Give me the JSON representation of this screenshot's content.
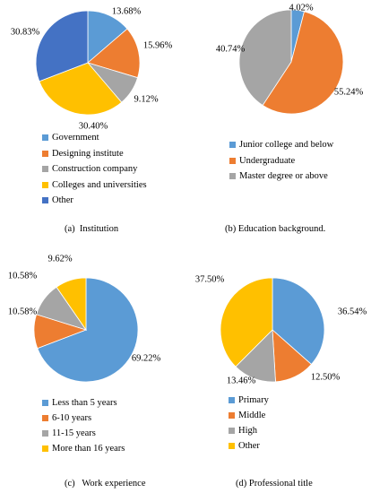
{
  "chart_data": [
    {
      "type": "pie",
      "caption": "(a)  Institution",
      "slices": [
        {
          "label": "Government",
          "value": 13.68,
          "value_label": "13.68%",
          "color": "#5B9BD5"
        },
        {
          "label": "Designing institute",
          "value": 15.96,
          "value_label": "15.96%",
          "color": "#ED7D31"
        },
        {
          "label": "Construction company",
          "value": 9.12,
          "value_label": "9.12%",
          "color": "#A5A5A5"
        },
        {
          "label": "Colleges and universities",
          "value": 30.4,
          "value_label": "30.40%",
          "color": "#FFC000"
        },
        {
          "label": "Other",
          "value": 30.83,
          "value_label": "30.83%",
          "color": "#4472C4"
        }
      ],
      "legend_position": "bottom"
    },
    {
      "type": "pie",
      "caption": "(b) Education background.",
      "slices": [
        {
          "label": "Junior college and below",
          "value": 4.02,
          "value_label": "4.02%",
          "color": "#5B9BD5"
        },
        {
          "label": "Undergraduate",
          "value": 55.24,
          "value_label": "55.24%",
          "color": "#ED7D31"
        },
        {
          "label": "Master degree or above",
          "value": 40.74,
          "value_label": "40.74%",
          "color": "#A5A5A5"
        }
      ],
      "legend_position": "bottom"
    },
    {
      "type": "pie",
      "caption": "(c)   Work experience",
      "slices": [
        {
          "label": "Less than 5 years",
          "value": 69.22,
          "value_label": "69.22%",
          "color": "#5B9BD5"
        },
        {
          "label": "6-10 years",
          "value": 10.58,
          "value_label": "10.58%",
          "color": "#ED7D31"
        },
        {
          "label": "11-15 years",
          "value": 10.58,
          "value_label": "10.58%",
          "color": "#A5A5A5"
        },
        {
          "label": "More than 16 years",
          "value": 9.62,
          "value_label": "9.62%",
          "color": "#FFC000"
        }
      ],
      "legend_position": "bottom"
    },
    {
      "type": "pie",
      "caption": "(d) Professional title",
      "slices": [
        {
          "label": "Primary",
          "value": 36.54,
          "value_label": "36.54%",
          "color": "#5B9BD5"
        },
        {
          "label": "Middle",
          "value": 12.5,
          "value_label": "12.50%",
          "color": "#ED7D31"
        },
        {
          "label": "High",
          "value": 13.46,
          "value_label": "13.46%",
          "color": "#A5A5A5"
        },
        {
          "label": "Other",
          "value": 37.5,
          "value_label": "37.50%",
          "color": "#FFC000"
        }
      ],
      "legend_position": "bottom"
    }
  ]
}
